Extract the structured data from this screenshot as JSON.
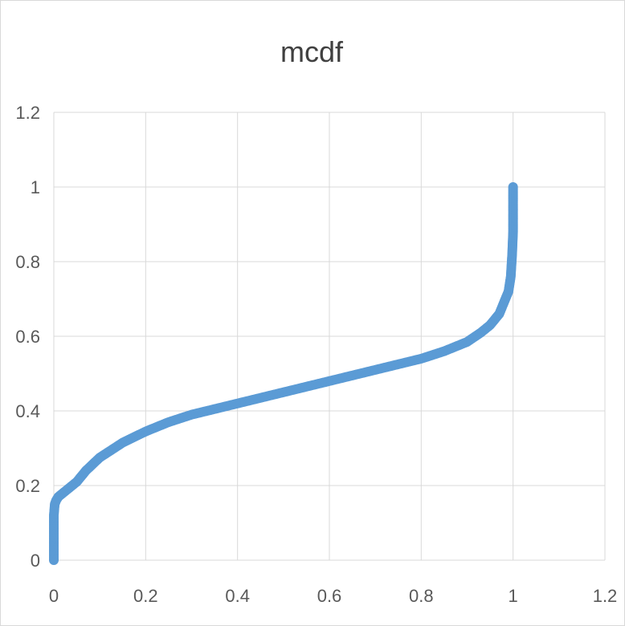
{
  "chart_data": {
    "type": "scatter",
    "title": "mcdf",
    "xlabel": "",
    "ylabel": "",
    "xlim": [
      0,
      1.2
    ],
    "ylim": [
      0,
      1.2
    ],
    "x_ticks": [
      "0",
      "0.2",
      "0.4",
      "0.6",
      "0.8",
      "1",
      "1.2"
    ],
    "y_ticks": [
      "0",
      "0.2",
      "0.4",
      "0.6",
      "0.8",
      "1",
      "1.2"
    ],
    "grid": true,
    "legend": "none",
    "marker_color": "#5b9bd5",
    "series": [
      {
        "x": [
          0,
          0,
          0,
          0,
          0.002,
          0.005,
          0.01,
          0.02,
          0.03,
          0.05,
          0.07,
          0.1,
          0.15,
          0.2,
          0.25,
          0.3,
          0.35,
          0.4,
          0.45,
          0.5,
          0.55,
          0.6,
          0.65,
          0.7,
          0.75,
          0.8,
          0.85,
          0.9,
          0.93,
          0.95,
          0.97,
          0.98,
          0.99,
          0.995,
          0.998,
          1.0,
          1.0,
          1.0
        ],
        "y": [
          0,
          0.04,
          0.08,
          0.12,
          0.15,
          0.16,
          0.17,
          0.18,
          0.19,
          0.21,
          0.24,
          0.275,
          0.315,
          0.345,
          0.37,
          0.39,
          0.405,
          0.42,
          0.435,
          0.45,
          0.465,
          0.48,
          0.495,
          0.51,
          0.525,
          0.54,
          0.56,
          0.585,
          0.61,
          0.63,
          0.66,
          0.69,
          0.72,
          0.76,
          0.82,
          0.88,
          0.95,
          1.0
        ]
      }
    ]
  }
}
